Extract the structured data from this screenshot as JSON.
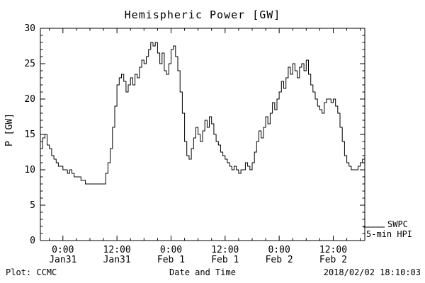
{
  "title": "Hemispheric Power [GW]",
  "footer": {
    "plot_credit": "Plot: CCMC",
    "xlabel": "Date and Time",
    "timestamp": "2018/02/02 18:10:03"
  },
  "legend": {
    "line1": "SWPC",
    "line2": "5-min HPI"
  },
  "colors": {
    "line": "#000000",
    "background": "#ffffff"
  },
  "chart_data": {
    "type": "line",
    "title": "Hemispheric Power [GW]",
    "xlabel": "Date and Time",
    "ylabel": "P [GW]",
    "ylim": [
      0,
      30
    ],
    "y_ticks": [
      0,
      5,
      10,
      15,
      20,
      25,
      30
    ],
    "xlim_hours": [
      -5,
      67
    ],
    "x_minor_step_hours": 3,
    "x_ticks": [
      {
        "pos": 0,
        "time": "0:00",
        "date": "Jan31"
      },
      {
        "pos": 12,
        "time": "12:00",
        "date": "Jan31"
      },
      {
        "pos": 24,
        "time": "0:00",
        "date": "Feb 1"
      },
      {
        "pos": 36,
        "time": "12:00",
        "date": "Feb 1"
      },
      {
        "pos": 48,
        "time": "0:00",
        "date": "Feb 2"
      },
      {
        "pos": 60,
        "time": "12:00",
        "date": "Feb 2"
      }
    ],
    "grid": false,
    "legend_position": "right-bottom-outside",
    "series": [
      {
        "name": "SWPC 5-min HPI",
        "x_start_hours": -5,
        "step_hours": 0.5,
        "values": [
          13,
          14.5,
          15,
          13.5,
          13,
          12,
          11.5,
          11,
          10.5,
          10.5,
          10,
          10,
          9.5,
          10,
          9.5,
          9,
          9,
          9,
          8.5,
          8.5,
          8,
          8,
          8,
          8,
          8,
          8,
          8,
          8,
          8,
          9.5,
          11,
          13,
          16,
          19,
          22,
          23,
          23.5,
          22.5,
          21,
          22,
          23,
          22,
          23.5,
          23,
          24.5,
          25.5,
          25,
          26,
          27,
          28,
          27.5,
          28,
          26.5,
          25,
          26.5,
          24,
          23.5,
          25,
          27,
          27.5,
          26,
          24,
          21,
          18,
          14,
          12,
          11.5,
          13,
          14.5,
          16,
          15,
          14,
          15.5,
          17,
          16,
          17.5,
          16.5,
          15,
          14,
          13.5,
          12.5,
          12,
          11.5,
          11,
          10.5,
          10,
          10.5,
          10,
          9.5,
          10,
          10,
          11,
          10.5,
          10,
          11,
          12.5,
          14,
          15.5,
          14.5,
          16,
          17.5,
          16.5,
          18,
          19.5,
          18.5,
          20,
          21,
          22.5,
          21.5,
          23,
          24.5,
          23.5,
          25,
          24,
          23,
          24.5,
          25,
          24,
          25.5,
          23.5,
          22,
          21,
          20,
          19,
          18.5,
          18,
          19.5,
          20,
          20,
          19.5,
          20,
          19,
          18,
          16,
          14,
          12,
          11,
          10.5,
          10,
          10,
          10,
          10.5,
          11,
          11.5,
          12
        ]
      }
    ]
  }
}
